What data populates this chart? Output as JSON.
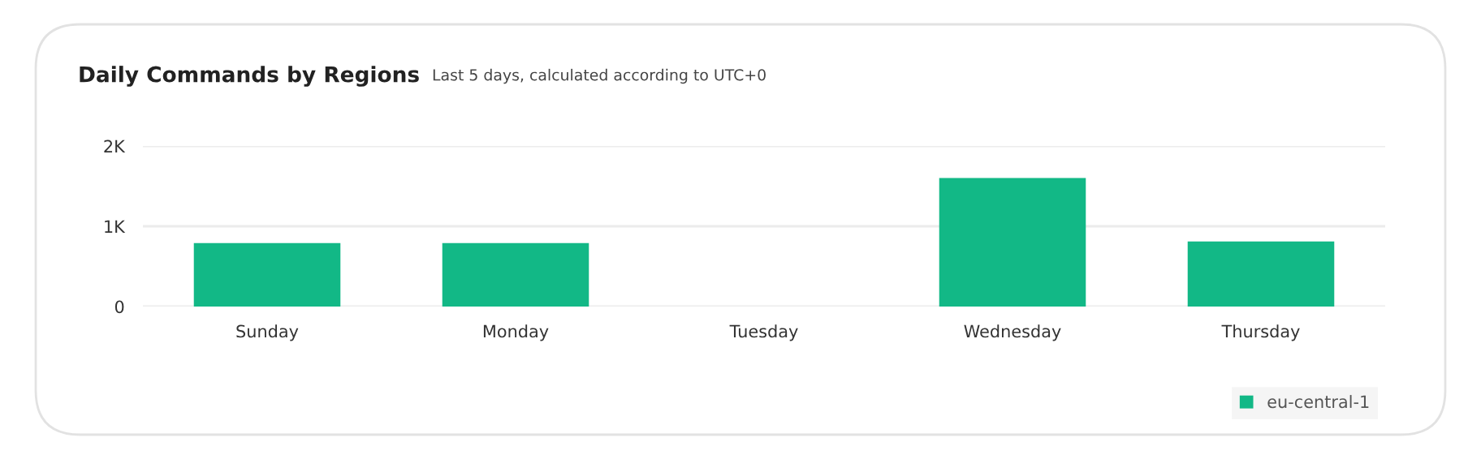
{
  "chart_data": {
    "type": "bar",
    "title": "Daily Commands by Regions",
    "subtitle": "Last 5 days, calculated according to UTC+0",
    "categories": [
      "Sunday",
      "Monday",
      "Tuesday",
      "Wednesday",
      "Thursday"
    ],
    "series": [
      {
        "name": "eu-central-1",
        "color": "#12b886",
        "values": [
          790,
          790,
          0,
          1600,
          810
        ]
      }
    ],
    "ylim": [
      0,
      2000
    ],
    "yticks": [
      {
        "value": 0,
        "label": "0"
      },
      {
        "value": 1000,
        "label": "1K"
      },
      {
        "value": 2000,
        "label": "2K"
      }
    ],
    "grid": "y",
    "legend": "bottom right"
  }
}
